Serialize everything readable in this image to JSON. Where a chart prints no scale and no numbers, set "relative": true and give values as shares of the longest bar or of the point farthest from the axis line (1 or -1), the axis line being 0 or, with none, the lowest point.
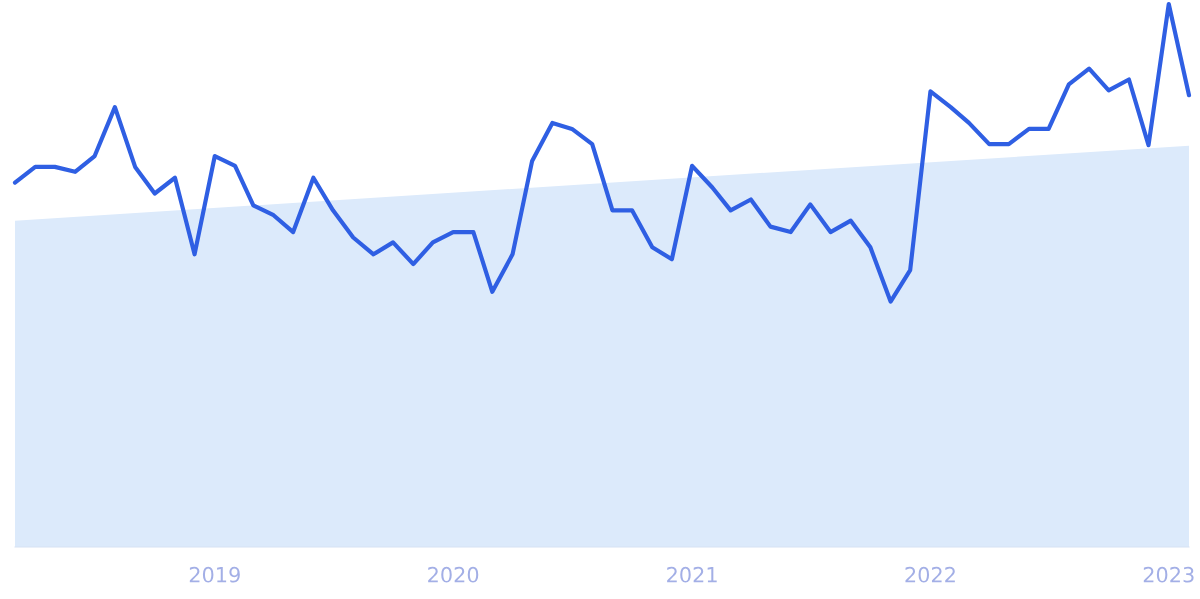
{
  "chart_data": {
    "type": "line",
    "relative": true,
    "marker": "none",
    "line_style": "solid",
    "xlim": [
      "2018-03",
      "2023-02"
    ],
    "xticks": [
      "2019",
      "2020",
      "2021",
      "2022",
      "2023"
    ],
    "series": [
      {
        "type": "area",
        "color": "#dceafb",
        "x": [
          "2018-03",
          "2023-02"
        ],
        "values": [
          0.601,
          0.739
        ]
      },
      {
        "color": "#2f5fe3",
        "x": [
          "2018-03",
          "2018-04",
          "2018-05",
          "2018-06",
          "2018-07",
          "2018-08",
          "2018-09",
          "2018-10",
          "2018-11",
          "2018-12",
          "2019-01",
          "2019-02",
          "2019-03",
          "2019-04",
          "2019-05",
          "2019-06",
          "2019-07",
          "2019-08",
          "2019-09",
          "2019-10",
          "2019-11",
          "2019-12",
          "2020-01",
          "2020-02",
          "2020-03",
          "2020-04",
          "2020-05",
          "2020-06",
          "2020-07",
          "2020-08",
          "2020-09",
          "2020-10",
          "2020-11",
          "2020-12",
          "2021-01",
          "2021-02",
          "2021-03",
          "2021-04",
          "2021-05",
          "2021-06",
          "2021-07",
          "2021-08",
          "2021-09",
          "2021-10",
          "2021-11",
          "2021-12",
          "2022-01",
          "2022-02",
          "2022-03",
          "2022-04",
          "2022-05",
          "2022-06",
          "2022-07",
          "2022-08",
          "2022-09",
          "2022-10",
          "2022-11",
          "2022-12",
          "2023-01",
          "2023-02"
        ],
        "values": [
          0.671,
          0.7,
          0.7,
          0.691,
          0.72,
          0.81,
          0.7,
          0.651,
          0.68,
          0.539,
          0.72,
          0.702,
          0.629,
          0.611,
          0.58,
          0.68,
          0.62,
          0.57,
          0.539,
          0.561,
          0.521,
          0.561,
          0.58,
          0.58,
          0.47,
          0.539,
          0.711,
          0.781,
          0.77,
          0.742,
          0.62,
          0.62,
          0.552,
          0.53,
          0.702,
          0.662,
          0.62,
          0.64,
          0.59,
          0.58,
          0.631,
          0.58,
          0.601,
          0.552,
          0.452,
          0.51,
          0.839,
          0.81,
          0.781,
          0.742,
          0.742,
          0.77,
          0.77,
          0.852,
          0.881,
          0.841,
          0.861,
          0.74,
          1.0,
          0.832
        ]
      }
    ]
  }
}
